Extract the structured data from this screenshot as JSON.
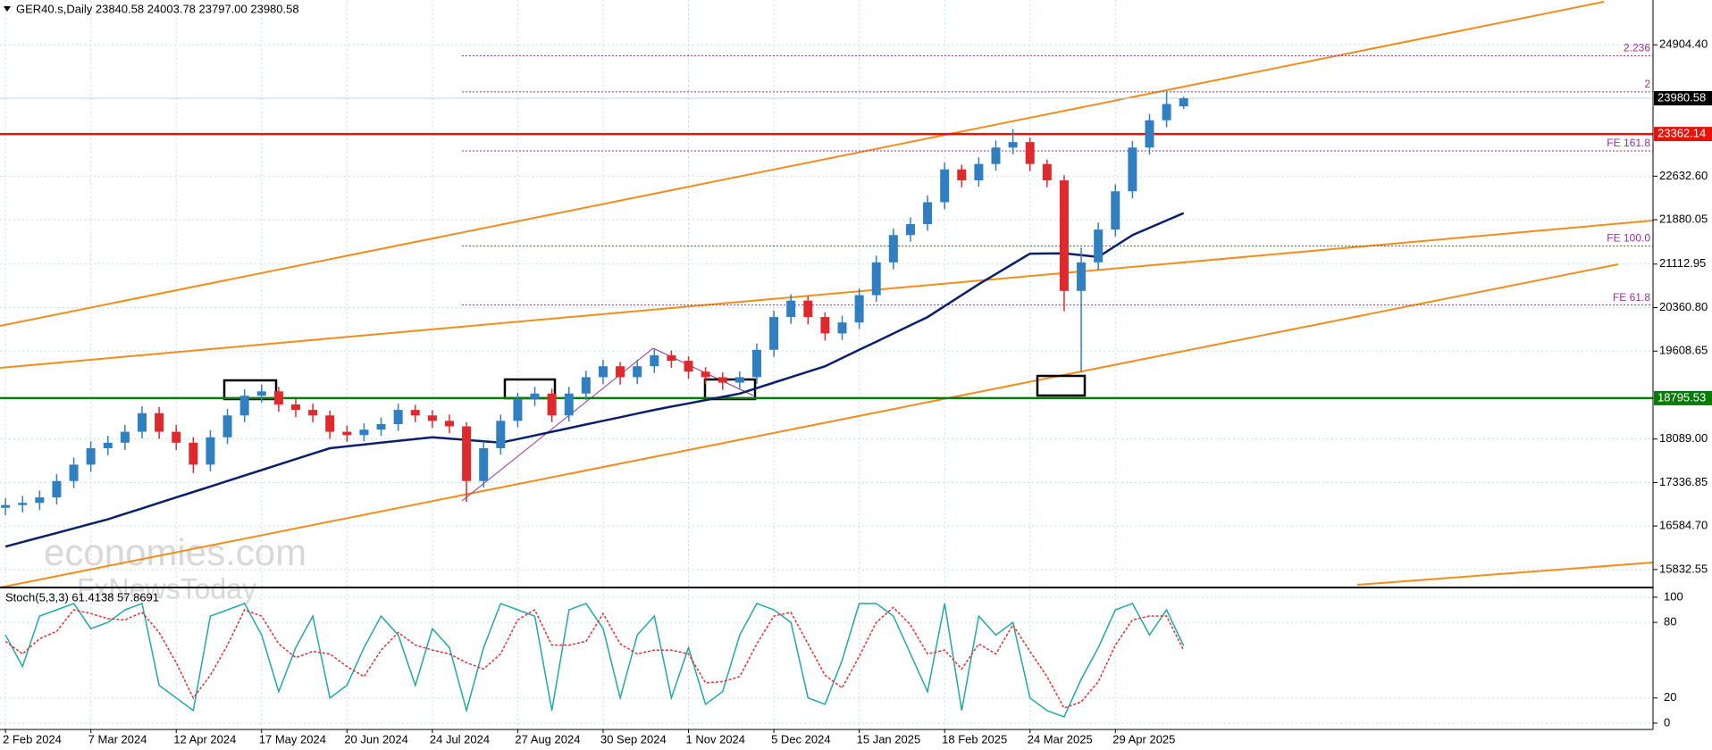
{
  "chart_data": {
    "type": "candlestick",
    "header": "GER40.s,Daily  23840.58 24003.78 23797.00 23980.58",
    "categories": [
      "2 Feb 2024",
      null,
      null,
      null,
      null,
      "7 Mar 2024",
      null,
      null,
      null,
      null,
      "12 Apr 2024",
      null,
      null,
      null,
      null,
      "17 May 2024",
      null,
      null,
      null,
      null,
      "20 Jun 2024",
      null,
      null,
      null,
      null,
      "24 Jul 2024",
      null,
      null,
      null,
      null,
      "27 Aug 2024",
      null,
      null,
      null,
      null,
      "30 Sep 2024",
      null,
      null,
      null,
      null,
      "1 Nov 2024",
      null,
      null,
      null,
      null,
      "5 Dec 2024",
      null,
      null,
      null,
      null,
      "15 Jan 2025",
      null,
      null,
      null,
      null,
      "18 Feb 2025",
      null,
      null,
      null,
      null,
      "24 Mar 2025",
      null,
      null,
      null,
      null,
      "29 Apr 2025",
      null,
      null,
      null,
      null
    ],
    "open": [
      16900,
      16947,
      16985,
      17080,
      17363,
      17646,
      17930,
      18025,
      18214,
      18535,
      18214,
      18025,
      17646,
      18119,
      18497,
      18837,
      18913,
      18686,
      18592,
      18497,
      18214,
      18156,
      18251,
      18346,
      18592,
      18497,
      18403,
      18308,
      17363,
      17930,
      18403,
      18780,
      18875,
      18497,
      18875,
      19158,
      19347,
      19158,
      19347,
      19536,
      19442,
      19253,
      19158,
      19063,
      19158,
      19631,
      20198,
      20482,
      20198,
      19915,
      20104,
      20576,
      21143,
      21615,
      21805,
      22183,
      22750,
      22561,
      22844,
      23128,
      23222,
      22844,
      22561,
      20650,
      21143,
      21710,
      22372,
      23128,
      23600,
      23840.58
    ],
    "high": [
      17067,
      17105,
      17200,
      17483,
      17766,
      18050,
      18145,
      18334,
      18655,
      18640,
      18330,
      18120,
      18240,
      18610,
      18950,
      19030,
      18990,
      18780,
      18700,
      18580,
      18320,
      18360,
      18460,
      18700,
      18680,
      18590,
      18510,
      18380,
      18050,
      18510,
      18890,
      18990,
      18960,
      18990,
      19270,
      19460,
      19420,
      19460,
      19650,
      19620,
      19520,
      19330,
      19240,
      19260,
      19740,
      20310,
      20590,
      20560,
      20280,
      20220,
      20690,
      21260,
      21730,
      21920,
      22300,
      22870,
      22830,
      22960,
      23250,
      23450,
      23300,
      22920,
      22650,
      21400,
      21830,
      22490,
      23240,
      23710,
      24100,
      24003.78
    ],
    "low": [
      16770,
      16820,
      16860,
      16960,
      17240,
      17520,
      17810,
      17900,
      18100,
      18090,
      17900,
      17500,
      17530,
      18000,
      18380,
      18720,
      18560,
      18470,
      18380,
      18090,
      18040,
      18050,
      18140,
      18230,
      18380,
      18280,
      18190,
      17000,
      17250,
      17820,
      18290,
      18660,
      18380,
      18390,
      18760,
      19040,
      19030,
      19040,
      19230,
      19320,
      19130,
      19040,
      18940,
      18950,
      19040,
      19510,
      20080,
      20070,
      19790,
      19800,
      19990,
      20460,
      21020,
      21500,
      21690,
      22060,
      22440,
      22450,
      22730,
      23010,
      22720,
      22440,
      20300,
      19250,
      21020,
      21590,
      22250,
      23010,
      23480,
      23797
    ],
    "close": [
      16947,
      16985,
      17080,
      17363,
      17646,
      17930,
      18025,
      18214,
      18535,
      18214,
      18025,
      17646,
      18119,
      18497,
      18837,
      18913,
      18686,
      18592,
      18497,
      18214,
      18156,
      18251,
      18346,
      18592,
      18497,
      18403,
      18308,
      17363,
      17930,
      18403,
      18780,
      18875,
      18497,
      18875,
      19158,
      19347,
      19158,
      19347,
      19536,
      19442,
      19253,
      19158,
      19063,
      19158,
      19631,
      20198,
      20482,
      20198,
      19915,
      20104,
      20576,
      21143,
      21615,
      21805,
      22183,
      22750,
      22561,
      22844,
      23128,
      23222,
      22844,
      22561,
      20650,
      21143,
      21710,
      22372,
      23128,
      23600,
      23880,
      23980.58
    ],
    "up_color": "#2f7fc1",
    "down_color": "#e0292d",
    "ylim": [
      15568,
      25679
    ],
    "yticks": [
      {
        "value": 24904.4,
        "label": "24904.40"
      },
      {
        "value": 22632.6,
        "label": "22632.60"
      },
      21880.05,
      21112.95,
      {
        "value": 20360.8,
        "label": "20360.80"
      },
      19608.65,
      {
        "value": 18089,
        "label": "18089.00"
      },
      17336.85,
      {
        "value": 16584.7,
        "label": "16584.70"
      },
      15832.55
    ],
    "grid": true,
    "ma": {
      "color": "#0b1f6b",
      "values": [
        16229,
        16308,
        16386,
        16465,
        16544,
        16622,
        16701,
        16796,
        16890,
        16985,
        17079,
        17174,
        17268,
        17363,
        17458,
        17552,
        17647,
        17741,
        17836,
        17930,
        17962,
        17993,
        18025,
        18056,
        18088,
        18119,
        18096,
        18072,
        18049,
        18025,
        18088,
        18151,
        18214,
        18277,
        18340,
        18403,
        18466,
        18529,
        18592,
        18649,
        18705,
        18762,
        18818,
        18875,
        18969,
        19064,
        19158,
        19253,
        19347,
        19489,
        19631,
        19772,
        19914,
        20056,
        20198,
        20387,
        20576,
        20765,
        20941,
        21118,
        21294,
        21297,
        21300,
        21269,
        21237,
        21426,
        21615,
        21741,
        21868,
        21994
      ]
    },
    "levels": [
      {
        "value": 23980.58,
        "color": "#000000"
      },
      {
        "value": 23362.14,
        "color": "#e8120c"
      },
      {
        "value": 18795.53,
        "color": "#0a7a0a"
      }
    ],
    "fib_levels": [
      {
        "label": "2.236",
        "value": 24715
      },
      {
        "label": "2",
        "value": 24091
      },
      {
        "label": "FE 161.8",
        "value": 23071
      },
      {
        "label": "FE 100.0",
        "value": 21427
      },
      {
        "label": "FE 61.8",
        "value": 20406
      }
    ],
    "watermark": [
      "economies.com",
      "FxNewsToday"
    ],
    "stoch": {
      "label": "Stoch(5,3,3) 61.4138 57.8691",
      "ylim": [
        -5,
        107
      ],
      "yticks": [
        0,
        20,
        80,
        100
      ],
      "series": [
        {
          "color": "#1fa8a8",
          "values": [
            70,
            45,
            85,
            90,
            95,
            75,
            80,
            90,
            95,
            30,
            20,
            10,
            85,
            90,
            95,
            70,
            25,
            60,
            85,
            20,
            30,
            60,
            85,
            70,
            30,
            75,
            60,
            10,
            60,
            95,
            90,
            85,
            10,
            90,
            95,
            75,
            20,
            70,
            85,
            20,
            60,
            15,
            25,
            70,
            95,
            90,
            80,
            20,
            15,
            50,
            95,
            95,
            85,
            55,
            25,
            95,
            10,
            85,
            70,
            80,
            20,
            10,
            5,
            35,
            60,
            90,
            95,
            70,
            90,
            61.4138
          ]
        },
        {
          "color": "#e03030",
          "values": [
            65,
            55,
            67,
            73,
            90,
            87,
            83,
            82,
            88,
            72,
            48,
            20,
            38,
            62,
            90,
            85,
            63,
            52,
            57,
            55,
            45,
            37,
            58,
            72,
            62,
            58,
            55,
            48,
            43,
            55,
            82,
            90,
            62,
            62,
            65,
            87,
            63,
            55,
            58,
            58,
            55,
            32,
            33,
            37,
            63,
            85,
            88,
            63,
            38,
            28,
            53,
            80,
            92,
            78,
            55,
            58,
            43,
            63,
            55,
            78,
            57,
            37,
            12,
            17,
            33,
            62,
            82,
            85,
            85,
            57.8691
          ]
        }
      ]
    }
  }
}
